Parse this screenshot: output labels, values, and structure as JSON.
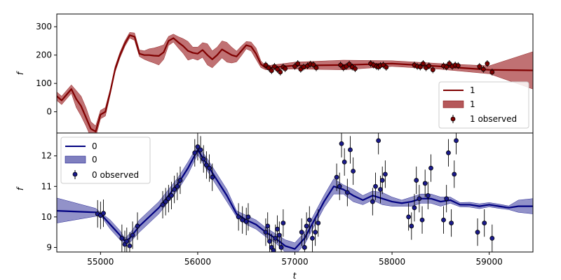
{
  "chart_data": [
    {
      "type": "line",
      "panel": "top",
      "xlabel": "",
      "ylabel": "f",
      "xlim": [
        54550,
        59450
      ],
      "ylim": [
        -75,
        345
      ],
      "yticks": [
        0,
        100,
        200,
        300
      ],
      "legend_position": "bottom-right",
      "colors": {
        "line": "#7f0000",
        "band": "#b5585a",
        "points": "#7f0000"
      },
      "series": [
        {
          "name": "1",
          "kind": "line",
          "x": [
            54550,
            54600,
            54650,
            54700,
            54750,
            54800,
            54850,
            54900,
            54950,
            55000,
            55050,
            55100,
            55150,
            55200,
            55250,
            55300,
            55350,
            55400,
            55450,
            55500,
            55550,
            55600,
            55650,
            55700,
            55750,
            55800,
            55850,
            55900,
            55950,
            56000,
            56050,
            56100,
            56150,
            56200,
            56250,
            56300,
            56350,
            56400,
            56450,
            56500,
            56550,
            56600,
            56650,
            56700,
            57000,
            57500,
            58000,
            58500,
            59000,
            59450
          ],
          "y": [
            55,
            40,
            60,
            80,
            45,
            20,
            -20,
            -60,
            -70,
            -10,
            0,
            70,
            150,
            200,
            240,
            270,
            265,
            205,
            200,
            200,
            198,
            197,
            210,
            250,
            260,
            245,
            232,
            215,
            208,
            205,
            218,
            200,
            185,
            200,
            220,
            210,
            200,
            195,
            215,
            235,
            230,
            205,
            168,
            155,
            163,
            165,
            170,
            160,
            148,
            146
          ]
        },
        {
          "name": "1",
          "kind": "band",
          "x": [
            54550,
            54600,
            54650,
            54700,
            54750,
            54800,
            54850,
            54900,
            54950,
            55000,
            55050,
            55100,
            55150,
            55200,
            55250,
            55300,
            55350,
            55400,
            55450,
            55500,
            55550,
            55600,
            55650,
            55700,
            55750,
            55800,
            55850,
            55900,
            55950,
            56000,
            56050,
            56100,
            56150,
            56200,
            56250,
            56300,
            56350,
            56400,
            56450,
            56500,
            56550,
            56600,
            56650,
            56700,
            57000,
            57500,
            58000,
            58500,
            59000,
            59450
          ],
          "upper": [
            70,
            55,
            75,
            95,
            75,
            55,
            15,
            -35,
            -50,
            5,
            15,
            80,
            160,
            210,
            250,
            280,
            278,
            218,
            215,
            222,
            225,
            230,
            236,
            266,
            274,
            265,
            258,
            248,
            228,
            228,
            244,
            240,
            215,
            228,
            250,
            245,
            228,
            214,
            232,
            248,
            246,
            225,
            180,
            162,
            175,
            182,
            180,
            170,
            162,
            212
          ],
          "lower": [
            40,
            25,
            45,
            65,
            15,
            -15,
            -50,
            -90,
            -90,
            -25,
            -15,
            60,
            140,
            190,
            230,
            260,
            252,
            195,
            185,
            178,
            172,
            165,
            185,
            234,
            246,
            225,
            206,
            182,
            188,
            182,
            192,
            165,
            155,
            172,
            190,
            175,
            172,
            176,
            198,
            222,
            214,
            185,
            156,
            148,
            151,
            148,
            160,
            150,
            134,
            80
          ]
        },
        {
          "name": "1 observed",
          "kind": "scatter",
          "x": [
            56700,
            56730,
            56760,
            56790,
            56820,
            56850,
            56880,
            56900,
            57000,
            57030,
            57060,
            57090,
            57130,
            57160,
            57190,
            57220,
            57470,
            57500,
            57530,
            57560,
            57590,
            57620,
            57780,
            57810,
            57840,
            57860,
            57880,
            57910,
            57940,
            58230,
            58260,
            58290,
            58320,
            58350,
            58380,
            58420,
            58530,
            58560,
            58590,
            58620,
            58650,
            58680,
            58900,
            58940,
            58980,
            59030
          ],
          "y": [
            165,
            155,
            145,
            160,
            150,
            140,
            158,
            152,
            160,
            170,
            150,
            158,
            162,
            168,
            166,
            155,
            165,
            155,
            160,
            168,
            158,
            152,
            170,
            165,
            160,
            158,
            163,
            165,
            157,
            165,
            160,
            158,
            170,
            155,
            162,
            148,
            162,
            158,
            170,
            160,
            165,
            163,
            160,
            150,
            170,
            140
          ]
        }
      ]
    },
    {
      "type": "line",
      "panel": "bottom",
      "xlabel": "t",
      "ylabel": "f",
      "xlim": [
        54550,
        59450
      ],
      "ylim": [
        8.85,
        12.75
      ],
      "xticks": [
        55000,
        56000,
        57000,
        58000,
        59000
      ],
      "yticks": [
        9,
        10,
        11,
        12
      ],
      "legend_position": "top-left",
      "colors": {
        "line": "#000080",
        "band": "#7f7fbf",
        "points": "#1a1a8c"
      },
      "series": [
        {
          "name": "0",
          "kind": "line",
          "x": [
            54550,
            54950,
            55000,
            55100,
            55200,
            55250,
            55300,
            55400,
            55500,
            55600,
            55700,
            55800,
            55900,
            56000,
            56100,
            56200,
            56300,
            56400,
            56500,
            56600,
            56700,
            56800,
            56900,
            57000,
            57100,
            57200,
            57300,
            57400,
            57500,
            57600,
            57700,
            57800,
            57900,
            58000,
            58100,
            58200,
            58300,
            58400,
            58500,
            58600,
            58700,
            58800,
            58900,
            59000,
            59100,
            59200,
            59300,
            59450
          ],
          "y": [
            10.2,
            10.15,
            10.1,
            9.75,
            9.4,
            9.2,
            9.3,
            9.7,
            10.0,
            10.3,
            10.7,
            11.1,
            11.6,
            12.2,
            11.7,
            11.2,
            10.7,
            10.1,
            9.9,
            9.75,
            9.5,
            9.3,
            9.05,
            8.95,
            9.3,
            9.9,
            10.5,
            11.0,
            10.9,
            10.7,
            10.55,
            10.7,
            10.6,
            10.5,
            10.45,
            10.5,
            10.6,
            10.6,
            10.5,
            10.55,
            10.4,
            10.4,
            10.35,
            10.4,
            10.35,
            10.3,
            10.35,
            10.35
          ]
        },
        {
          "name": "0",
          "kind": "band",
          "x": [
            54550,
            54950,
            55000,
            55100,
            55200,
            55250,
            55300,
            55400,
            55500,
            55600,
            55700,
            55800,
            55900,
            56000,
            56100,
            56200,
            56300,
            56400,
            56500,
            56600,
            56700,
            56800,
            56900,
            57000,
            57100,
            57200,
            57300,
            57400,
            57500,
            57600,
            57700,
            57800,
            57900,
            58000,
            58100,
            58200,
            58300,
            58400,
            58500,
            58600,
            58700,
            58800,
            58900,
            59000,
            59100,
            59200,
            59300,
            59450
          ],
          "upper": [
            10.62,
            10.28,
            10.15,
            9.9,
            9.55,
            9.3,
            9.45,
            9.9,
            10.2,
            10.5,
            10.9,
            11.3,
            11.8,
            12.35,
            11.9,
            11.4,
            10.9,
            10.2,
            10.05,
            9.9,
            9.65,
            9.45,
            9.25,
            9.15,
            9.5,
            10.1,
            10.7,
            11.25,
            11.05,
            10.9,
            10.7,
            10.85,
            10.8,
            10.65,
            10.55,
            10.65,
            10.75,
            10.75,
            10.65,
            10.65,
            10.47,
            10.48,
            10.43,
            10.47,
            10.42,
            10.36,
            10.55,
            10.6
          ],
          "lower": [
            9.8,
            10.02,
            10.05,
            9.6,
            9.25,
            9.1,
            9.15,
            9.5,
            9.8,
            10.1,
            10.5,
            10.9,
            11.4,
            12.05,
            11.5,
            11.0,
            10.5,
            10.0,
            9.75,
            9.6,
            9.35,
            9.15,
            8.85,
            8.75,
            9.1,
            9.7,
            10.3,
            10.75,
            10.75,
            10.5,
            10.4,
            10.55,
            10.4,
            10.35,
            10.35,
            10.35,
            10.45,
            10.45,
            10.35,
            10.45,
            10.33,
            10.32,
            10.27,
            10.33,
            10.28,
            10.24,
            10.15,
            10.1
          ]
        },
        {
          "name": "0 observed",
          "kind": "scatter",
          "x": [
            54970,
            55000,
            55030,
            55220,
            55250,
            55270,
            55300,
            55330,
            55380,
            55640,
            55670,
            55700,
            55730,
            55760,
            55790,
            55820,
            55970,
            56000,
            56030,
            56060,
            56090,
            56120,
            56150,
            56420,
            56460,
            56500,
            56520,
            56700,
            56720,
            56740,
            56760,
            56780,
            56800,
            56820,
            56840,
            56860,
            56880,
            57070,
            57100,
            57120,
            57150,
            57180,
            57210,
            57240,
            57430,
            57460,
            57480,
            57510,
            57540,
            57570,
            57600,
            57800,
            57830,
            57860,
            57880,
            57900,
            57930,
            58170,
            58200,
            58230,
            58250,
            58280,
            58310,
            58340,
            58370,
            58400,
            58530,
            58560,
            58580,
            58610,
            58640,
            58660,
            58880,
            58950,
            59030
          ],
          "y": [
            10.1,
            10.05,
            10.12,
            9.3,
            9.1,
            9.2,
            9.05,
            9.4,
            9.7,
            10.4,
            10.5,
            10.6,
            10.7,
            10.9,
            11.0,
            11.2,
            12.1,
            12.3,
            12.2,
            11.9,
            11.7,
            11.6,
            11.3,
            10.0,
            9.9,
            9.85,
            10.0,
            9.5,
            9.7,
            9.2,
            9.0,
            8.9,
            9.3,
            9.6,
            9.4,
            9.0,
            9.8,
            9.5,
            9.0,
            9.7,
            9.9,
            9.3,
            9.5,
            9.8,
            11.3,
            11.0,
            12.4,
            11.8,
            10.8,
            12.2,
            11.5,
            10.5,
            11.0,
            12.5,
            10.9,
            11.2,
            11.4,
            10.0,
            9.7,
            10.3,
            11.2,
            10.6,
            9.9,
            11.1,
            10.7,
            11.6,
            9.9,
            10.6,
            12.1,
            9.8,
            11.4,
            12.5,
            9.5,
            9.8,
            9.3
          ]
        }
      ]
    }
  ]
}
